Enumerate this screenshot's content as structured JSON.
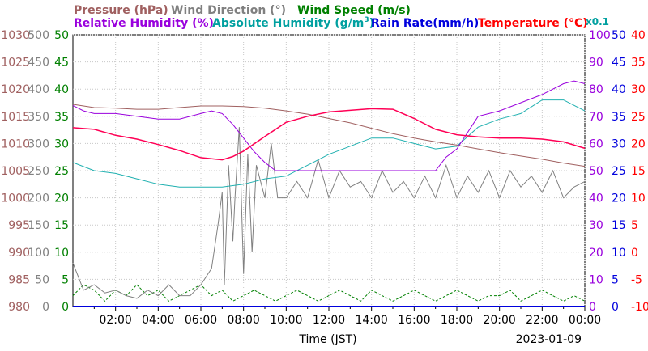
{
  "chart_data": {
    "type": "line",
    "date": "2023-01-09",
    "xlabel": "Time (JST)",
    "x_ticks": [
      "02:00",
      "04:00",
      "06:00",
      "08:00",
      "10:00",
      "12:00",
      "14:00",
      "16:00",
      "18:00",
      "20:00",
      "22:00",
      "00:00"
    ],
    "x_range_hours": [
      0,
      24
    ],
    "legend_row1": [
      {
        "label": "Pressure (hPa)",
        "color": "#a06060"
      },
      {
        "label": "Wind Direction (°)",
        "color": "#808080"
      },
      {
        "label": "Wind Speed (m/s)",
        "color": "#008000"
      }
    ],
    "legend_row2": [
      {
        "label": "Relative Humidity (%)",
        "color": "#9900dd"
      },
      {
        "label": "Absolute Humidity (g/m",
        "sup": "3",
        "tail": ")",
        "color": "#00a0a0"
      },
      {
        "label": "Rain Rate(mm/h)",
        "color": "#0000dd"
      },
      {
        "label": "Temperature (°C)",
        "color": "#ff0000"
      }
    ],
    "abs_hum_scale_label": "x0.1",
    "axes": {
      "pressure": {
        "color": "#a06060",
        "range": [
          980,
          1030
        ],
        "ticks": [
          "1030",
          "1025",
          "1020",
          "1015",
          "1010",
          "1005",
          "1000",
          "995",
          "990",
          "985",
          "980"
        ]
      },
      "wind_direction": {
        "color": "#808080",
        "range": [
          0,
          500
        ],
        "ticks": [
          "500",
          "450",
          "400",
          "350",
          "300",
          "250",
          "200",
          "150",
          "100",
          "50",
          "0"
        ]
      },
      "wind_speed": {
        "color": "#008000",
        "range": [
          0,
          50
        ],
        "ticks": [
          "50",
          "45",
          "40",
          "35",
          "30",
          "25",
          "20",
          "15",
          "10",
          "5",
          "0"
        ]
      },
      "humidity": {
        "color": "#9900dd",
        "range": [
          0,
          100
        ],
        "ticks": [
          "100",
          "90",
          "80",
          "70",
          "60",
          "50",
          "40",
          "30",
          "20",
          "10",
          "0"
        ]
      },
      "rain_rate": {
        "color": "#0000dd",
        "range": [
          0,
          50
        ],
        "ticks": [
          "50",
          "45",
          "40",
          "35",
          "30",
          "25",
          "20",
          "15",
          "10",
          "5",
          "0"
        ]
      },
      "temperature": {
        "color": "#ff0000",
        "range": [
          -10,
          40
        ],
        "ticks": [
          "40",
          "35",
          "30",
          "25",
          "20",
          "15",
          "10",
          "5",
          "0",
          "-5",
          "-10"
        ]
      }
    },
    "series": [
      {
        "name": "Pressure",
        "axis": "pressure",
        "color": "#a06060",
        "x": [
          0,
          1,
          2,
          3,
          4,
          5,
          6,
          7,
          8,
          9,
          10,
          11,
          12,
          13,
          14,
          15,
          16,
          17,
          18,
          19,
          20,
          21,
          22,
          23,
          24
        ],
        "y": [
          1017.2,
          1016.6,
          1016.5,
          1016.3,
          1016.3,
          1016.6,
          1016.9,
          1016.9,
          1016.8,
          1016.5,
          1016.0,
          1015.4,
          1014.6,
          1013.8,
          1012.8,
          1011.8,
          1011.0,
          1010.3,
          1009.7,
          1009.0,
          1008.3,
          1007.7,
          1007.1,
          1006.4,
          1005.8
        ]
      },
      {
        "name": "Relative Humidity",
        "axis": "humidity",
        "color": "#9900dd",
        "x": [
          0,
          0.5,
          1,
          2,
          3,
          4,
          5,
          6,
          6.5,
          7,
          7.5,
          8,
          8.5,
          9,
          9.5,
          10,
          11,
          12,
          13,
          14,
          15,
          16,
          17,
          17.5,
          18,
          19,
          20,
          21,
          22,
          23,
          23.5,
          24
        ],
        "y": [
          74,
          72,
          71,
          71,
          70,
          69,
          69,
          71,
          72,
          71,
          67,
          62,
          57,
          53,
          50,
          50,
          50,
          50,
          50,
          50,
          50,
          50,
          50,
          55,
          58,
          70,
          72,
          75,
          78,
          82,
          83,
          82
        ]
      },
      {
        "name": "Absolute Humidity",
        "axis": "humidity",
        "color": "#20b0b0",
        "x": [
          0,
          1,
          2,
          3,
          4,
          5,
          6,
          7,
          8,
          9,
          10,
          11,
          12,
          13,
          14,
          15,
          16,
          17,
          18,
          19,
          20,
          21,
          22,
          23,
          24
        ],
        "y": [
          53,
          50,
          49,
          47,
          45,
          44,
          44,
          44,
          45,
          47,
          48,
          52,
          56,
          59,
          62,
          62,
          60,
          58,
          59,
          66,
          69,
          71,
          76,
          76,
          72
        ]
      },
      {
        "name": "Temperature",
        "axis": "temperature",
        "color": "#ff0055",
        "x": [
          0,
          1,
          2,
          3,
          4,
          5,
          6,
          7,
          7.5,
          8,
          9,
          10,
          11,
          12,
          13,
          14,
          15,
          16,
          17,
          18,
          19,
          20,
          21,
          22,
          23,
          24
        ],
        "y": [
          22.9,
          22.6,
          21.5,
          20.8,
          19.8,
          18.7,
          17.4,
          17,
          17.6,
          18.6,
          21.3,
          23.9,
          25,
          25.8,
          26.1,
          26.4,
          26.3,
          24.6,
          22.6,
          21.6,
          21.2,
          21.0,
          21.0,
          20.8,
          20.3,
          19.1
        ]
      },
      {
        "name": "Wind Direction",
        "axis": "wind_direction",
        "color": "#808080",
        "x": [
          0,
          0.5,
          1,
          1.5,
          2,
          2.5,
          3,
          3.5,
          4,
          4.5,
          5,
          5.5,
          6,
          6.5,
          6.8,
          7,
          7.1,
          7.3,
          7.5,
          7.6,
          7.8,
          8,
          8.2,
          8.4,
          8.6,
          9,
          9.3,
          9.6,
          10,
          10.5,
          11,
          11.5,
          12,
          12.5,
          13,
          13.5,
          14,
          14.5,
          15,
          15.5,
          16,
          16.5,
          17,
          17.5,
          18,
          18.5,
          19,
          19.5,
          20,
          20.5,
          21,
          21.5,
          22,
          22.5,
          23,
          23.5,
          24
        ],
        "y": [
          80,
          30,
          40,
          25,
          30,
          20,
          15,
          30,
          20,
          40,
          20,
          20,
          40,
          70,
          150,
          210,
          40,
          260,
          120,
          200,
          330,
          60,
          280,
          100,
          260,
          200,
          300,
          200,
          200,
          230,
          200,
          270,
          200,
          250,
          220,
          230,
          200,
          250,
          210,
          230,
          200,
          240,
          200,
          260,
          200,
          240,
          210,
          250,
          200,
          250,
          220,
          240,
          210,
          250,
          200,
          220,
          230
        ]
      },
      {
        "name": "Wind Speed",
        "axis": "wind_speed",
        "color": "#008000",
        "x": [
          0,
          0.5,
          1,
          1.5,
          2,
          2.5,
          3,
          3.5,
          4,
          4.5,
          5,
          5.5,
          6,
          6.5,
          7,
          7.5,
          8,
          8.5,
          9,
          9.5,
          10,
          10.5,
          11,
          11.5,
          12,
          12.5,
          13,
          13.5,
          14,
          14.5,
          15,
          15.5,
          16,
          16.5,
          17,
          17.5,
          18,
          18.5,
          19,
          19.5,
          20,
          20.5,
          21,
          21.5,
          22,
          22.5,
          23,
          23.5,
          24
        ],
        "y": [
          2,
          4,
          3,
          1,
          3,
          2,
          4,
          2,
          3,
          1,
          2,
          3,
          4,
          2,
          3,
          1,
          2,
          3,
          2,
          1,
          2,
          3,
          2,
          1,
          2,
          3,
          2,
          1,
          3,
          2,
          1,
          2,
          3,
          2,
          1,
          2,
          3,
          2,
          1,
          2,
          2,
          3,
          1,
          2,
          3,
          2,
          1,
          2,
          1
        ]
      },
      {
        "name": "Rain Rate",
        "axis": "rain_rate",
        "color": "#0000dd",
        "x": [
          0,
          24
        ],
        "y": [
          0,
          0
        ]
      }
    ]
  }
}
